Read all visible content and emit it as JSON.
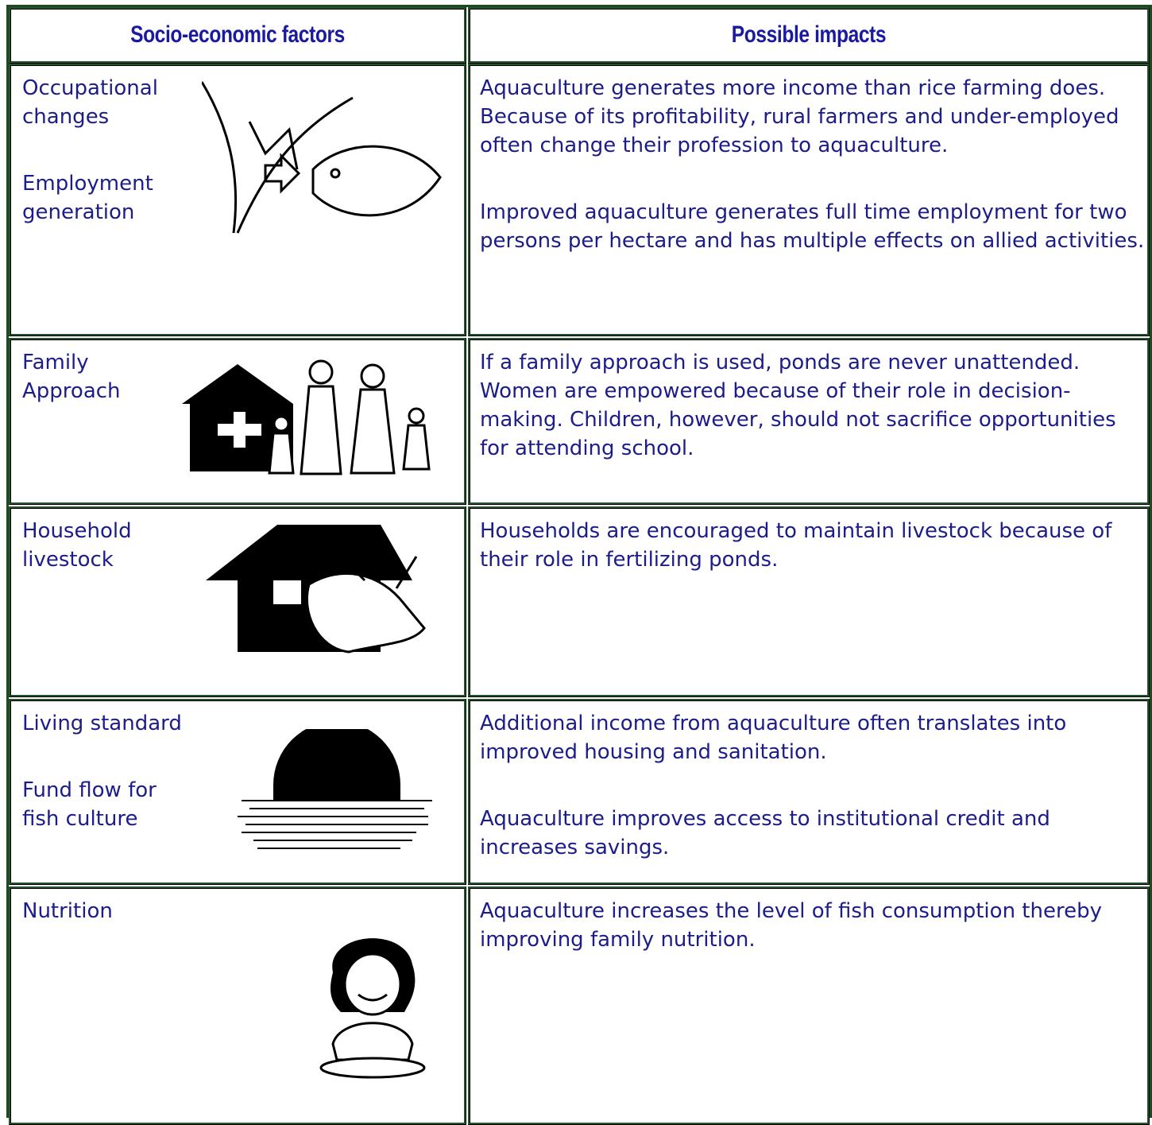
{
  "header": {
    "columns": [
      "Socio-economic factors",
      "Possible impacts"
    ]
  },
  "rows": [
    {
      "factors": [
        "Occupational changes",
        "Employment generation"
      ],
      "impacts": [
        "Aquaculture generates more income than rice farming does. Because of its profitability, rural farmers and under-employed often change their profession to aquaculture.",
        "Improved aquaculture generates full time employment for two persons per hectare and has multiple effects on allied activities."
      ]
    },
    {
      "factors": [
        "Family Approach"
      ],
      "impacts": [
        "If a family approach is used, ponds are never unattended. Women are empowered because of their role in decision-making. Children, however, should not sacrifice opportunities for attending school."
      ]
    },
    {
      "factors": [
        "Household livestock"
      ],
      "impacts": [
        "Households are encouraged to maintain livestock because of their role in fertilizing ponds."
      ]
    },
    {
      "factors": [
        "Living standard",
        "Fund flow for fish culture"
      ],
      "impacts": [
        "Additional income from aquaculture often translates into improved housing and sanitation.",
        "Aquaculture improves access to institutional credit and increases savings."
      ]
    },
    {
      "factors": [
        "Nutrition"
      ],
      "impacts": [
        "Aquaculture increases the level of fish consumption thereby improving family nutrition."
      ]
    }
  ]
}
